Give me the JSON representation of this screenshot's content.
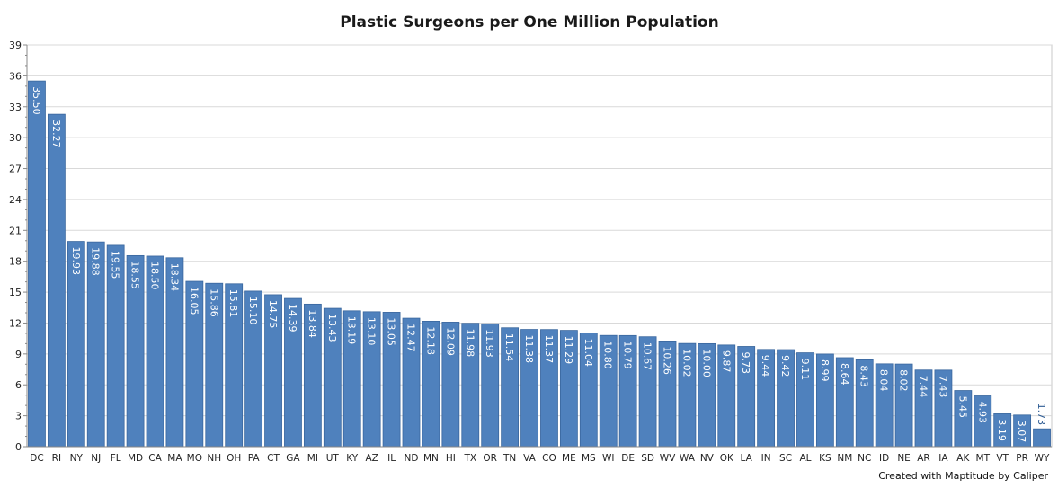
{
  "chart_data": {
    "type": "bar",
    "title": "Plastic Surgeons per One Million Population",
    "footer": "Created with Maptitude by Caliper",
    "xlabel": "",
    "ylabel": "",
    "ylim": [
      0,
      39
    ],
    "yticks": [
      0,
      3,
      6,
      9,
      12,
      15,
      18,
      21,
      24,
      27,
      30,
      33,
      36,
      39
    ],
    "grid": true,
    "bar_color": "#4f81bd",
    "categories": [
      "DC",
      "RI",
      "NY",
      "NJ",
      "FL",
      "MD",
      "CA",
      "MA",
      "MO",
      "NH",
      "OH",
      "PA",
      "CT",
      "GA",
      "MI",
      "UT",
      "KY",
      "AZ",
      "IL",
      "ND",
      "MN",
      "HI",
      "TX",
      "OR",
      "TN",
      "VA",
      "CO",
      "ME",
      "MS",
      "WI",
      "DE",
      "SD",
      "WV",
      "WA",
      "NV",
      "OK",
      "LA",
      "IN",
      "SC",
      "AL",
      "KS",
      "NM",
      "NC",
      "ID",
      "NE",
      "AR",
      "IA",
      "AK",
      "MT",
      "VT",
      "PR",
      "WY"
    ],
    "values": [
      35.5,
      32.27,
      19.93,
      19.88,
      19.55,
      18.55,
      18.5,
      18.34,
      16.05,
      15.86,
      15.81,
      15.1,
      14.75,
      14.39,
      13.84,
      13.43,
      13.19,
      13.1,
      13.05,
      12.47,
      12.18,
      12.09,
      11.98,
      11.93,
      11.54,
      11.38,
      11.37,
      11.29,
      11.04,
      10.8,
      10.79,
      10.67,
      10.26,
      10.02,
      10.0,
      9.87,
      9.73,
      9.44,
      9.42,
      9.11,
      8.99,
      8.64,
      8.43,
      8.04,
      8.02,
      7.44,
      7.43,
      5.45,
      4.93,
      3.19,
      3.07,
      1.73
    ],
    "labels": [
      "35.50",
      "32.27",
      "19.93",
      "19.88",
      "19.55",
      "18.55",
      "18.50",
      "18.34",
      "16.05",
      "15.86",
      "15.81",
      "15.10",
      "14.75",
      "14.39",
      "13.84",
      "13.43",
      "13.19",
      "13.10",
      "13.05",
      "12.47",
      "12.18",
      "12.09",
      "11.98",
      "11.93",
      "11.54",
      "11.38",
      "11.37",
      "11.29",
      "11.04",
      "10.80",
      "10.79",
      "10.67",
      "10.26",
      "10.02",
      "10.00",
      "9.87",
      "9.73",
      "9.44",
      "9.42",
      "9.11",
      "8.99",
      "8.64",
      "8.43",
      "8.04",
      "8.02",
      "7.44",
      "7.43",
      "5.45",
      "4.93",
      "3.19",
      "3.07",
      "1.73"
    ]
  }
}
